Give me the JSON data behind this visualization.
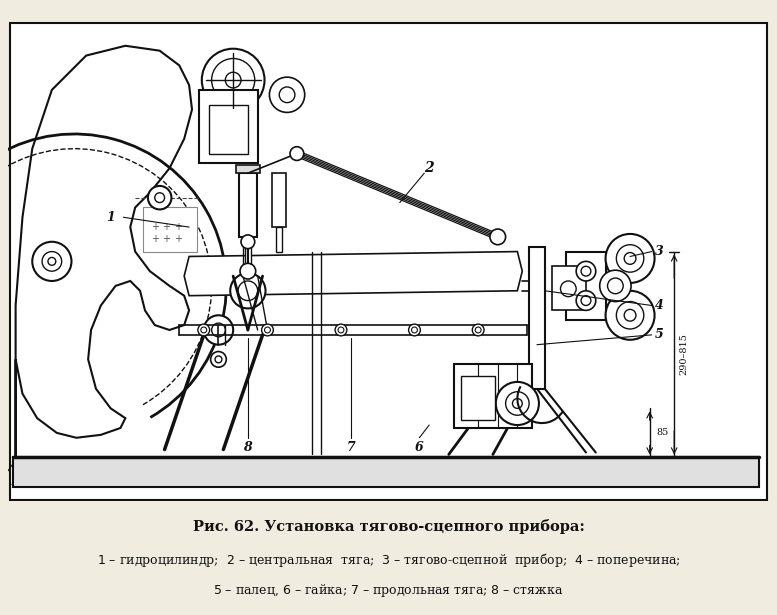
{
  "title": "Рис. 62. Установка тягово-сцепного прибора:",
  "caption_line1": "1 – гидроцилиндр;  2 – центральная  тяга;  3 – тягово-сцепной  прибор;  4 – поперечина;",
  "caption_line2": "5 – палец, 6 – гайка; 7 – продольная тяга; 8 – стяжка",
  "bg_color": "#f0ece0",
  "border_color": "#111111",
  "text_color": "#111111",
  "fig_width": 7.77,
  "fig_height": 6.15,
  "dpi": 100
}
